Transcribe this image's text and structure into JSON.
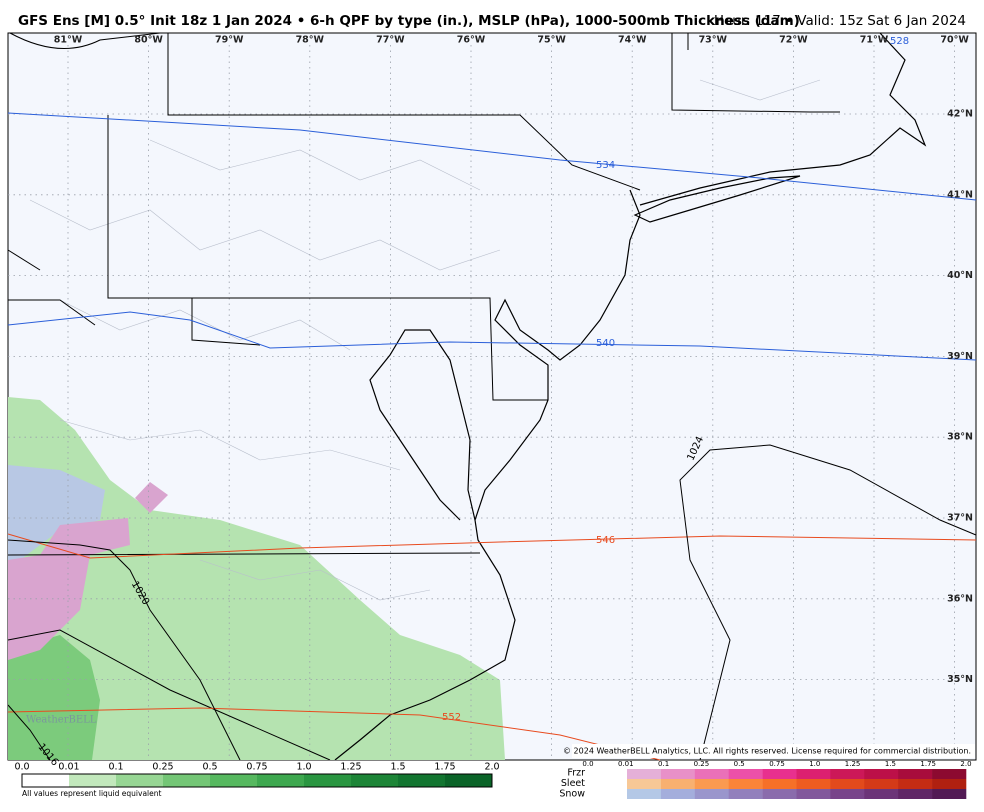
{
  "header": {
    "title": "GFS Ens [M] 0.5° Init 18z 1 Jan 2024 • 6-h QPF by type (in.), MSLP (hPa), 1000-500mb Thickness (dam)",
    "valid": "Hour: 117 • Valid: 15z Sat 6 Jan 2024"
  },
  "map": {
    "lon_labels": [
      "81°W",
      "80°W",
      "79°W",
      "78°W",
      "77°W",
      "76°W",
      "75°W",
      "74°W",
      "73°W",
      "72°W",
      "71°W",
      "70°W"
    ],
    "lat_labels": [
      "42°N",
      "41°N",
      "40°N",
      "39°N",
      "38°N",
      "37°N",
      "36°N",
      "35°N"
    ],
    "thickness_labels": [
      "528",
      "534",
      "540",
      "546",
      "552"
    ],
    "pressure_labels": [
      "1024",
      "1020",
      "1016"
    ],
    "watermark": "WeatherBELL",
    "copyright": "© 2024 WeatherBELL Analytics, LLC. All rights reserved. License required for commercial distribution."
  },
  "legend": {
    "rain_scale": [
      "0.0",
      "0.01",
      "0.1",
      "0.25",
      "0.5",
      "0.75",
      "1.0",
      "1.25",
      "1.5",
      "1.75",
      "2.0"
    ],
    "note": "All values represent liquid equivalent",
    "type_names": [
      "Frzr",
      "Sleet",
      "Snow"
    ],
    "type_scale": [
      "0.0",
      "0.01",
      "0.1",
      "0.25",
      "0.5",
      "0.75",
      "1.0",
      "1.25",
      "1.5",
      "1.75",
      "2.0"
    ]
  }
}
